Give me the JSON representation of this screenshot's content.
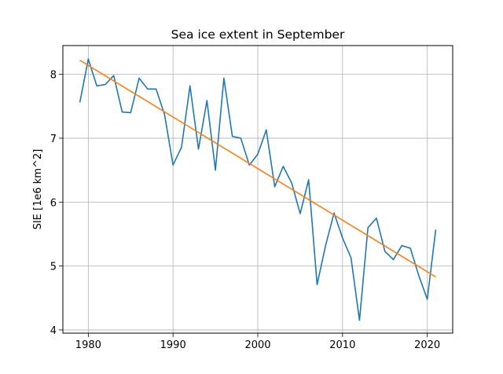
{
  "chart_data": {
    "type": "line",
    "title": "Sea ice extent in September",
    "xlabel": "",
    "ylabel": "SIE [1e6 km^2]",
    "xlim": [
      1977,
      2023
    ],
    "ylim": [
      3.95,
      8.45
    ],
    "grid": true,
    "x_ticks": [
      1980,
      1990,
      2000,
      2010,
      2020
    ],
    "y_ticks": [
      4,
      5,
      6,
      7,
      8
    ],
    "colors": {
      "series": "#1f77b4",
      "trend": "#ff7f0e"
    },
    "series": [
      {
        "x": [
          1979,
          1980,
          1981,
          1982,
          1983,
          1984,
          1985,
          1986,
          1987,
          1988,
          1989,
          1990,
          1991,
          1992,
          1993,
          1994,
          1995,
          1996,
          1997,
          1998,
          1999,
          2000,
          2001,
          2002,
          2003,
          2004,
          2005,
          2006,
          2007,
          2008,
          2009,
          2010,
          2011,
          2012,
          2013,
          2014,
          2015,
          2016,
          2017,
          2018,
          2019,
          2020,
          2021
        ],
        "values": [
          7.56,
          8.24,
          7.82,
          7.84,
          7.98,
          7.41,
          7.4,
          7.94,
          7.77,
          7.77,
          7.37,
          6.58,
          6.86,
          7.82,
          6.83,
          7.59,
          6.5,
          7.94,
          7.03,
          7.0,
          6.58,
          6.75,
          7.13,
          6.24,
          6.56,
          6.3,
          5.82,
          6.35,
          4.71,
          5.32,
          5.83,
          5.44,
          5.13,
          4.15,
          5.6,
          5.75,
          5.23,
          5.1,
          5.32,
          5.28,
          4.85,
          4.48,
          5.57
        ]
      },
      {
        "x": [
          1979,
          2021
        ],
        "values": [
          8.22,
          4.83
        ]
      }
    ]
  }
}
